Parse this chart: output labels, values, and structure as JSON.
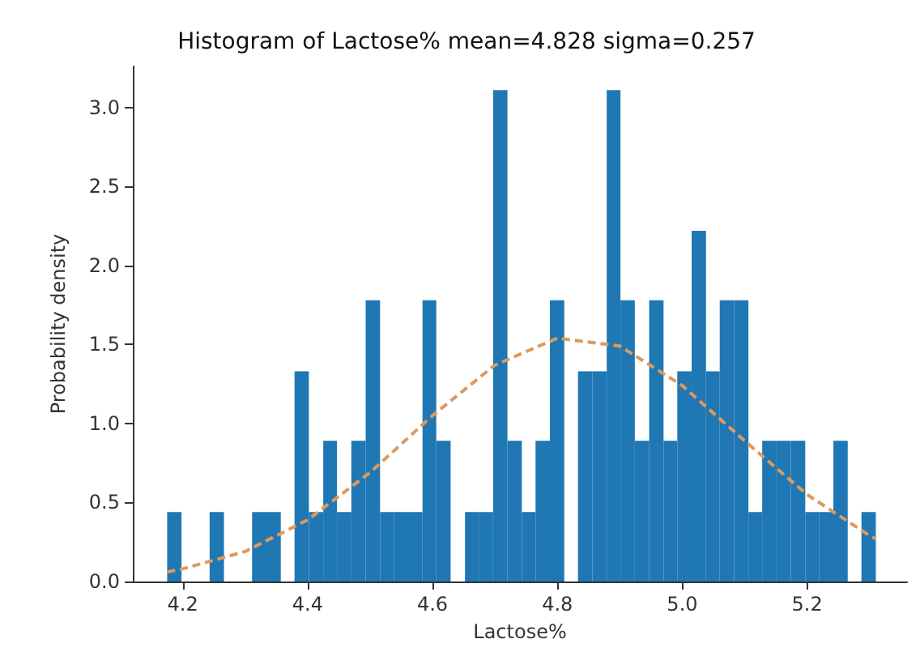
{
  "chart_data": {
    "type": "histogram",
    "title": "Histogram of Lactose% mean=4.828 sigma=0.257",
    "xlabel": "Lactose%",
    "ylabel": "Probability density",
    "color": "#1f77b4",
    "bins": [
      4.175,
      4.198,
      4.243,
      4.266,
      4.311,
      4.334,
      4.357,
      4.379,
      4.402,
      4.425,
      4.447,
      4.47,
      4.493,
      4.516,
      4.538,
      4.561,
      4.584,
      4.606,
      4.629,
      4.652,
      4.674,
      4.697,
      4.72,
      4.743,
      4.765,
      4.788,
      4.811,
      4.833,
      4.856,
      4.879,
      4.901,
      4.924,
      4.947,
      4.97,
      4.992,
      5.015,
      5.038,
      5.06,
      5.083,
      5.106,
      5.128,
      5.151,
      5.174,
      5.197,
      5.219,
      5.242,
      5.265,
      5.287,
      5.31
    ],
    "values": [
      0.44,
      0,
      0.44,
      0,
      0.44,
      0.44,
      0,
      1.33,
      0.44,
      0.89,
      0.44,
      0.89,
      1.78,
      0.44,
      0.44,
      0.44,
      1.78,
      0.89,
      0,
      0.44,
      0.44,
      3.11,
      0.89,
      0.44,
      0.89,
      1.78,
      0,
      1.33,
      1.33,
      3.11,
      1.78,
      0.89,
      1.78,
      0.89,
      1.33,
      2.22,
      1.33,
      1.78,
      1.78,
      0.44,
      0.89,
      0.89,
      0.89,
      0.44,
      0.44,
      0.89,
      0,
      0.44
    ],
    "series": [
      {
        "type": "line",
        "color": "#dd9a5c",
        "line_style": "dashed",
        "x": [
          4.175,
          4.2,
          4.3,
          4.4,
          4.5,
          4.6,
          4.7,
          4.8,
          4.9,
          5.0,
          5.1,
          5.2,
          5.3,
          5.31
        ],
        "values": [
          0.06,
          0.08,
          0.19,
          0.39,
          0.69,
          1.05,
          1.37,
          1.54,
          1.49,
          1.24,
          0.89,
          0.55,
          0.29,
          0.27
        ]
      }
    ],
    "xlim": [
      4.12,
      5.36
    ],
    "xticks": [
      4.2,
      4.4,
      4.6,
      4.8,
      {
        "value": 5,
        "label": "5.0"
      },
      5.2
    ],
    "ylim": [
      0,
      3.26
    ],
    "yticks": [
      {
        "value": 0,
        "label": "0.0"
      },
      {
        "value": 0.5,
        "label": "0.5"
      },
      {
        "value": 1,
        "label": "1.0"
      },
      {
        "value": 1.5,
        "label": "1.5"
      },
      {
        "value": 2,
        "label": "2.0"
      },
      {
        "value": 2.5,
        "label": "2.5"
      },
      {
        "value": 3,
        "label": "3.0"
      }
    ],
    "grid": false
  }
}
